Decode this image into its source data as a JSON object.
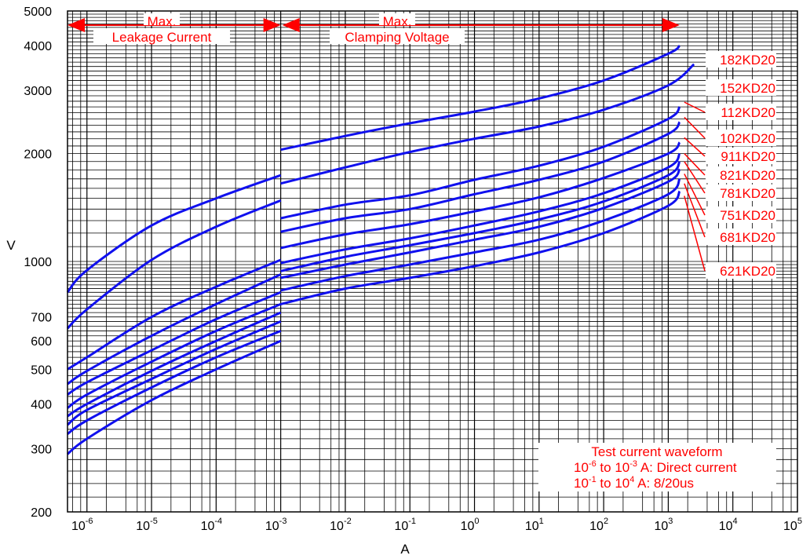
{
  "chart_data": {
    "type": "line",
    "xlabel": "A",
    "ylabel": "V",
    "x_scale": "log",
    "y_scale": "log",
    "xlim": [
      5e-07,
      100000
    ],
    "ylim": [
      200,
      5000
    ],
    "x_ticks": [
      {
        "base": "10",
        "exp": "-6",
        "value": 1e-06
      },
      {
        "base": "10",
        "exp": "-5",
        "value": 1e-05
      },
      {
        "base": "10",
        "exp": "-4",
        "value": 0.0001
      },
      {
        "base": "10",
        "exp": "-3",
        "value": 0.001
      },
      {
        "base": "10",
        "exp": "-2",
        "value": 0.01
      },
      {
        "base": "10",
        "exp": "-1",
        "value": 0.1
      },
      {
        "base": "10",
        "exp": "0",
        "value": 1
      },
      {
        "base": "10",
        "exp": "1",
        "value": 10
      },
      {
        "base": "10",
        "exp": "2",
        "value": 100
      },
      {
        "base": "10",
        "exp": "3",
        "value": 1000
      },
      {
        "base": "10",
        "exp": "4",
        "value": 10000
      },
      {
        "base": "10",
        "exp": "5",
        "value": 100000
      }
    ],
    "y_ticks": [
      {
        "label": "200",
        "value": 200
      },
      {
        "label": "300",
        "value": 300
      },
      {
        "label": "400",
        "value": 400
      },
      {
        "label": "500",
        "value": 500
      },
      {
        "label": "600",
        "value": 600
      },
      {
        "label": "700",
        "value": 700
      },
      {
        "label": "1000",
        "value": 1000
      },
      {
        "label": "2000",
        "value": 2000
      },
      {
        "label": "3000",
        "value": 3000
      },
      {
        "label": "4000",
        "value": 4000
      },
      {
        "label": "5000",
        "value": 5000
      }
    ],
    "grid": true,
    "region_labels": [
      {
        "line1": "Max.",
        "line2": "Leakage Current",
        "x_from": 5e-07,
        "x_to": 0.001
      },
      {
        "line1": "Max.",
        "line2": "Clamping Voltage",
        "x_from": 0.001,
        "x_to": 1500
      }
    ],
    "note": {
      "title": "Test current waveform",
      "line1_a": "10",
      "line1_exp1": "-6",
      "line1_b": " to 10",
      "line1_exp2": "-3",
      "line1_c": " A: Direct current",
      "line2_a": "10",
      "line2_exp1": "-1",
      "line2_b": " to 10",
      "line2_exp2": "4",
      "line2_c": " A: 8/20us"
    },
    "line_color": "#1010ee",
    "annotation_color": "#ff0000",
    "series": [
      {
        "name": "182KD20",
        "leakage": {
          "x": [
            5e-07,
            1e-06,
            1e-05,
            0.0001,
            0.001
          ],
          "y": [
            820,
            945,
            1260,
            1500,
            1740
          ]
        },
        "clamping": {
          "x": [
            0.001,
            0.01,
            0.1,
            1,
            10,
            100,
            1000,
            1500
          ],
          "y": [
            2050,
            2240,
            2430,
            2620,
            2850,
            3200,
            3800,
            4000
          ]
        }
      },
      {
        "name": "152KD20",
        "leakage": {
          "x": [
            5e-07,
            1e-06,
            1e-05,
            0.0001,
            0.001
          ],
          "y": [
            650,
            735,
            1010,
            1250,
            1480
          ]
        },
        "clamping": {
          "x": [
            0.001,
            0.01,
            0.1,
            1,
            10,
            100,
            1000,
            2500
          ],
          "y": [
            1650,
            1830,
            2020,
            2200,
            2380,
            2650,
            3100,
            3550
          ]
        }
      },
      {
        "name": "112KD20",
        "leakage": {
          "x": [
            5e-07,
            1e-06,
            1e-05,
            0.0001,
            0.001
          ],
          "y": [
            500,
            540,
            700,
            850,
            1010
          ]
        },
        "clamping": {
          "x": [
            0.001,
            0.01,
            0.1,
            1,
            10,
            100,
            1000,
            1500
          ],
          "y": [
            1320,
            1440,
            1530,
            1690,
            1850,
            2090,
            2500,
            2700
          ]
        }
      },
      {
        "name": "102KD20",
        "leakage": {
          "x": [
            5e-07,
            1e-06,
            1e-05,
            0.0001,
            0.001
          ],
          "y": [
            455,
            495,
            620,
            760,
            920
          ]
        },
        "clamping": {
          "x": [
            0.001,
            0.01,
            0.1,
            1,
            10,
            100,
            1000,
            1500
          ],
          "y": [
            1210,
            1320,
            1400,
            1540,
            1690,
            1900,
            2270,
            2450
          ]
        }
      },
      {
        "name": "911KD20",
        "leakage": {
          "x": [
            5e-07,
            1e-06,
            1e-05,
            0.0001,
            0.001
          ],
          "y": [
            425,
            460,
            565,
            690,
            820
          ]
        },
        "clamping": {
          "x": [
            0.001,
            0.01,
            0.1,
            1,
            10,
            100,
            1000,
            1500
          ],
          "y": [
            1090,
            1190,
            1270,
            1380,
            1510,
            1710,
            2000,
            2150
          ]
        }
      },
      {
        "name": "821KD20",
        "leakage": {
          "x": [
            5e-07,
            1e-06,
            1e-05,
            0.0001,
            0.001
          ],
          "y": [
            390,
            425,
            525,
            640,
            760
          ]
        },
        "clamping": {
          "x": [
            0.001,
            0.01,
            0.1,
            1,
            10,
            100,
            1000,
            1500
          ],
          "y": [
            990,
            1080,
            1160,
            1260,
            1380,
            1550,
            1830,
            2000
          ]
        }
      },
      {
        "name": "781KD20",
        "leakage": {
          "x": [
            5e-07,
            1e-06,
            1e-05,
            0.0001,
            0.001
          ],
          "y": [
            370,
            400,
            495,
            600,
            720
          ]
        },
        "clamping": {
          "x": [
            0.001,
            0.01,
            0.1,
            1,
            10,
            100,
            1000,
            1500
          ],
          "y": [
            940,
            1030,
            1110,
            1200,
            1310,
            1470,
            1740,
            1900
          ]
        }
      },
      {
        "name": "751KD20",
        "leakage": {
          "x": [
            5e-07,
            1e-06,
            1e-05,
            0.0001,
            0.001
          ],
          "y": [
            350,
            385,
            470,
            570,
            680
          ]
        },
        "clamping": {
          "x": [
            0.001,
            0.01,
            0.1,
            1,
            10,
            100,
            1000,
            1500
          ],
          "y": [
            900,
            980,
            1060,
            1150,
            1250,
            1410,
            1670,
            1810
          ]
        }
      },
      {
        "name": "681KD20",
        "leakage": {
          "x": [
            5e-07,
            1e-06,
            1e-05,
            0.0001,
            0.001
          ],
          "y": [
            330,
            360,
            445,
            540,
            640
          ]
        },
        "clamping": {
          "x": [
            0.001,
            0.01,
            0.1,
            1,
            10,
            100,
            1000,
            1500
          ],
          "y": [
            830,
            910,
            980,
            1060,
            1150,
            1300,
            1540,
            1700
          ]
        }
      },
      {
        "name": "621KD20",
        "leakage": {
          "x": [
            5e-07,
            1e-06,
            1e-05,
            0.0001,
            0.001
          ],
          "y": [
            290,
            320,
            410,
            500,
            600
          ]
        },
        "clamping": {
          "x": [
            0.001,
            0.01,
            0.1,
            1,
            10,
            100,
            1000,
            1500
          ],
          "y": [
            760,
            840,
            900,
            970,
            1060,
            1200,
            1430,
            1570
          ]
        }
      }
    ]
  }
}
